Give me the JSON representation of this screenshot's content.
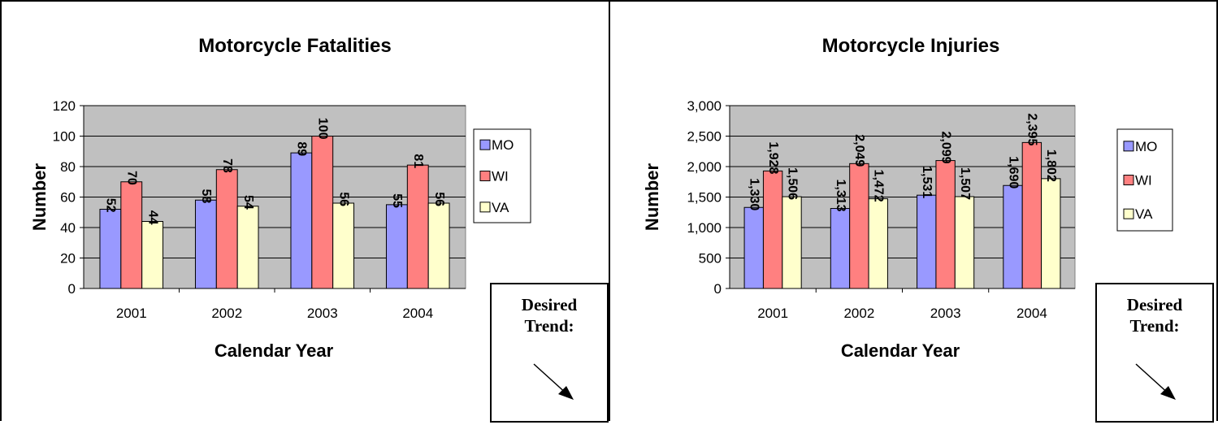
{
  "colors": {
    "MO": "#9999ff",
    "WI": "#ff8080",
    "VA": "#ffffcc",
    "plot_bg": "#c0c0c0"
  },
  "desired_trend": {
    "label_line1": "Desired",
    "label_line2": "Trend:",
    "arrow_icon": "down-right-arrow"
  },
  "chart_data": [
    {
      "type": "bar",
      "title": "Motorcycle Fatalities",
      "xlabel": "Calendar Year",
      "ylabel": "Number",
      "categories": [
        "2001",
        "2002",
        "2003",
        "2004"
      ],
      "series": [
        {
          "name": "MO",
          "values": [
            52,
            58,
            89,
            55
          ],
          "labels": [
            "52",
            "58",
            "89",
            "55"
          ]
        },
        {
          "name": "WI",
          "values": [
            70,
            78,
            100,
            81
          ],
          "labels": [
            "70",
            "78",
            "100",
            "81"
          ]
        },
        {
          "name": "VA",
          "values": [
            44,
            54,
            56,
            56
          ],
          "labels": [
            "44",
            "54",
            "56",
            "56"
          ]
        }
      ],
      "ylim": [
        0,
        120
      ],
      "yticks": [
        0,
        20,
        40,
        60,
        80,
        100,
        120
      ],
      "ytick_labels": [
        "0",
        "20",
        "40",
        "60",
        "80",
        "100",
        "120"
      ],
      "grid": true,
      "legend_position": "right"
    },
    {
      "type": "bar",
      "title": "Motorcycle Injuries",
      "xlabel": "Calendar Year",
      "ylabel": "Number",
      "categories": [
        "2001",
        "2002",
        "2003",
        "2004"
      ],
      "series": [
        {
          "name": "MO",
          "values": [
            1330,
            1313,
            1531,
            1690
          ],
          "labels": [
            "1,330",
            "1,313",
            "1,531",
            "1,690"
          ]
        },
        {
          "name": "WI",
          "values": [
            1928,
            2049,
            2099,
            2395
          ],
          "labels": [
            "1,928",
            "2,049",
            "2,099",
            "2,395"
          ]
        },
        {
          "name": "VA",
          "values": [
            1506,
            1472,
            1507,
            1802
          ],
          "labels": [
            "1,506",
            "1,472",
            "1,507",
            "1,802"
          ]
        }
      ],
      "ylim": [
        0,
        3000
      ],
      "yticks": [
        0,
        500,
        1000,
        1500,
        2000,
        2500,
        3000
      ],
      "ytick_labels": [
        "0",
        "500",
        "1,000",
        "1,500",
        "2,000",
        "2,500",
        "3,000"
      ],
      "grid": true,
      "legend_position": "right"
    }
  ]
}
